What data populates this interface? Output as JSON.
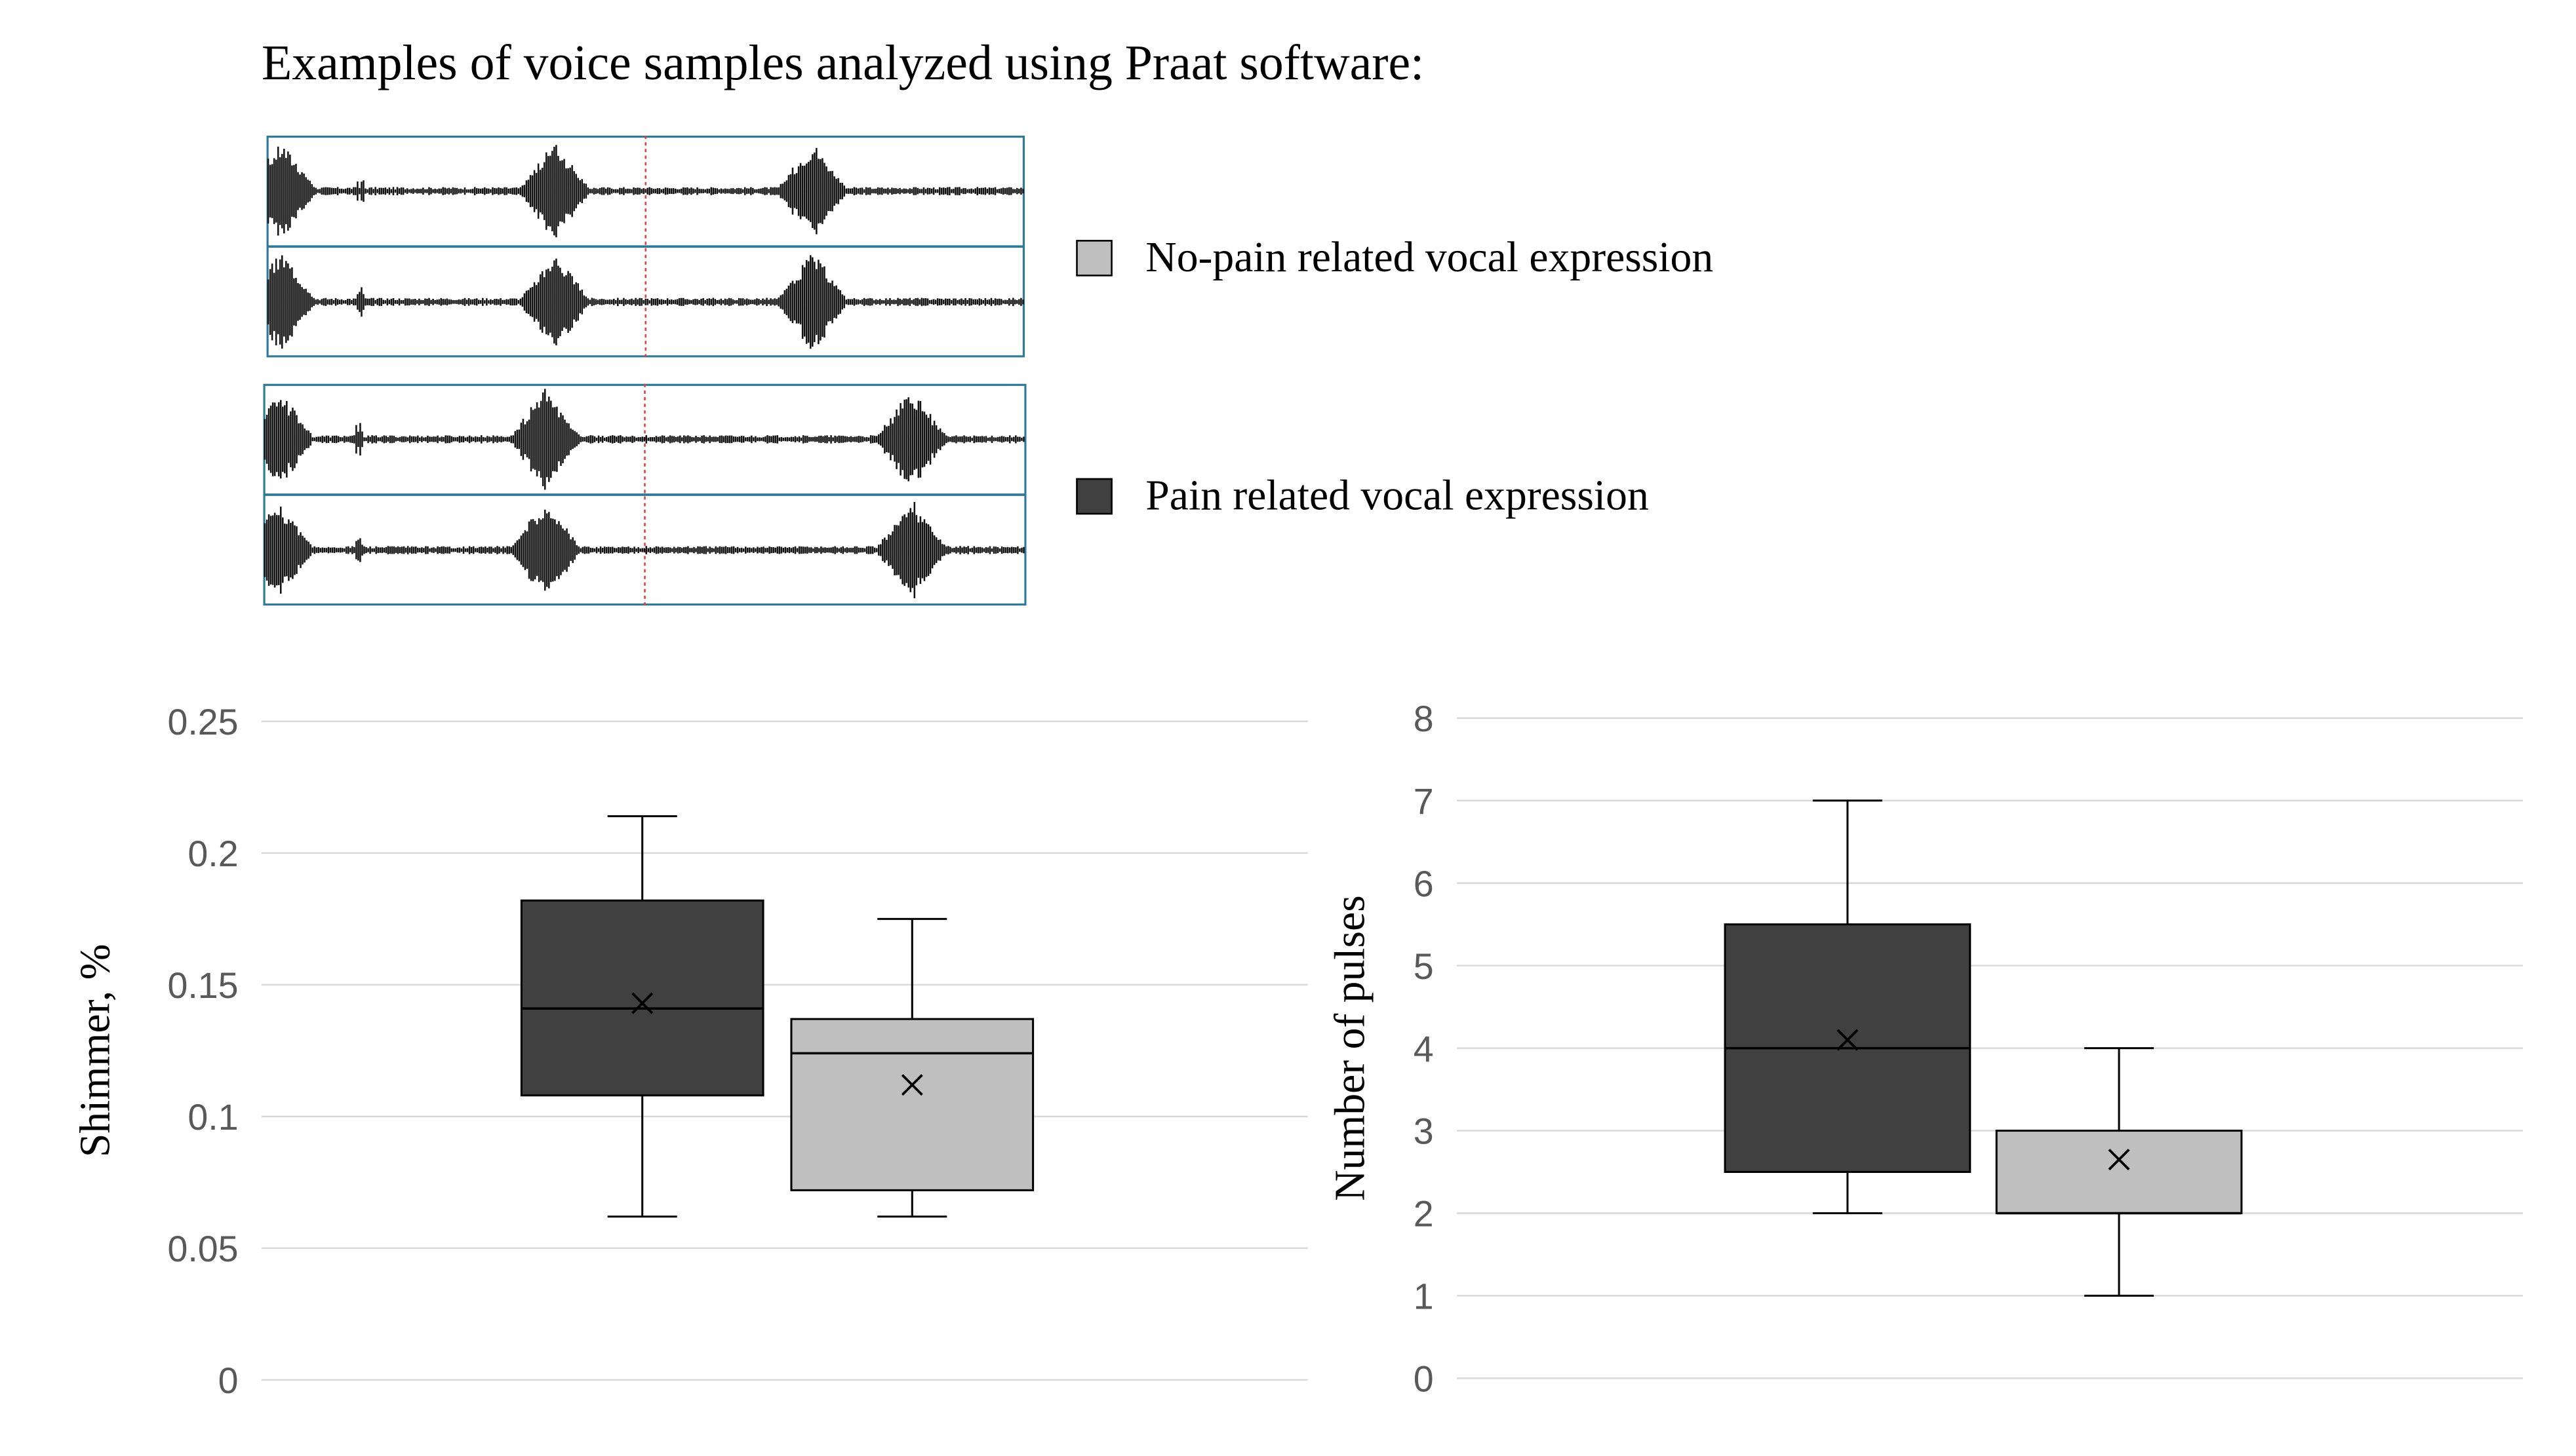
{
  "header": {
    "title": "Examples of voice samples analyzed using Praat software:"
  },
  "legend": [
    {
      "label": "No-pain related vocal expression",
      "color": "#bfbfbf"
    },
    {
      "label": "Pain related vocal expression",
      "color": "#404040"
    }
  ],
  "waveforms": [
    {
      "group": "No-pain related vocal expression",
      "bursts": [
        0.02,
        0.38,
        0.72
      ]
    },
    {
      "group": "Pain related vocal expression",
      "bursts": [
        0.02,
        0.37,
        0.85
      ]
    }
  ],
  "chart_data": [
    {
      "type": "box",
      "title": "",
      "xlabel": "",
      "ylabel": "Shimmer, %",
      "ylim": [
        0,
        0.25
      ],
      "yticks": [
        "0",
        "0.05",
        "0.1",
        "0.15",
        "0.2",
        "0.25"
      ],
      "ytick_values": [
        0,
        0.05,
        0.1,
        0.15,
        0.2,
        0.25
      ],
      "grid": true,
      "series": [
        {
          "name": "Pain related vocal expression",
          "color": "#404040",
          "min": 0.062,
          "q1": 0.108,
          "median": 0.141,
          "q3": 0.182,
          "max": 0.214,
          "mean": 0.143
        },
        {
          "name": "No-pain related vocal expression",
          "color": "#bfbfbf",
          "min": 0.062,
          "q1": 0.072,
          "median": 0.124,
          "q3": 0.137,
          "max": 0.175,
          "mean": 0.112
        }
      ]
    },
    {
      "type": "box",
      "title": "",
      "xlabel": "",
      "ylabel": "Number of pulses",
      "ylim": [
        0,
        8
      ],
      "yticks": [
        "0",
        "1",
        "2",
        "3",
        "4",
        "5",
        "6",
        "7",
        "8"
      ],
      "ytick_values": [
        0,
        1,
        2,
        3,
        4,
        5,
        6,
        7,
        8
      ],
      "grid": true,
      "series": [
        {
          "name": "Pain related vocal expression",
          "color": "#404040",
          "min": 2,
          "q1": 2.5,
          "median": 4,
          "q3": 5.5,
          "max": 7,
          "mean": 4.1
        },
        {
          "name": "No-pain related vocal expression",
          "color": "#bfbfbf",
          "min": 1,
          "q1": 2,
          "median": 2,
          "q3": 3,
          "max": 4,
          "mean": 2.65
        }
      ]
    }
  ]
}
